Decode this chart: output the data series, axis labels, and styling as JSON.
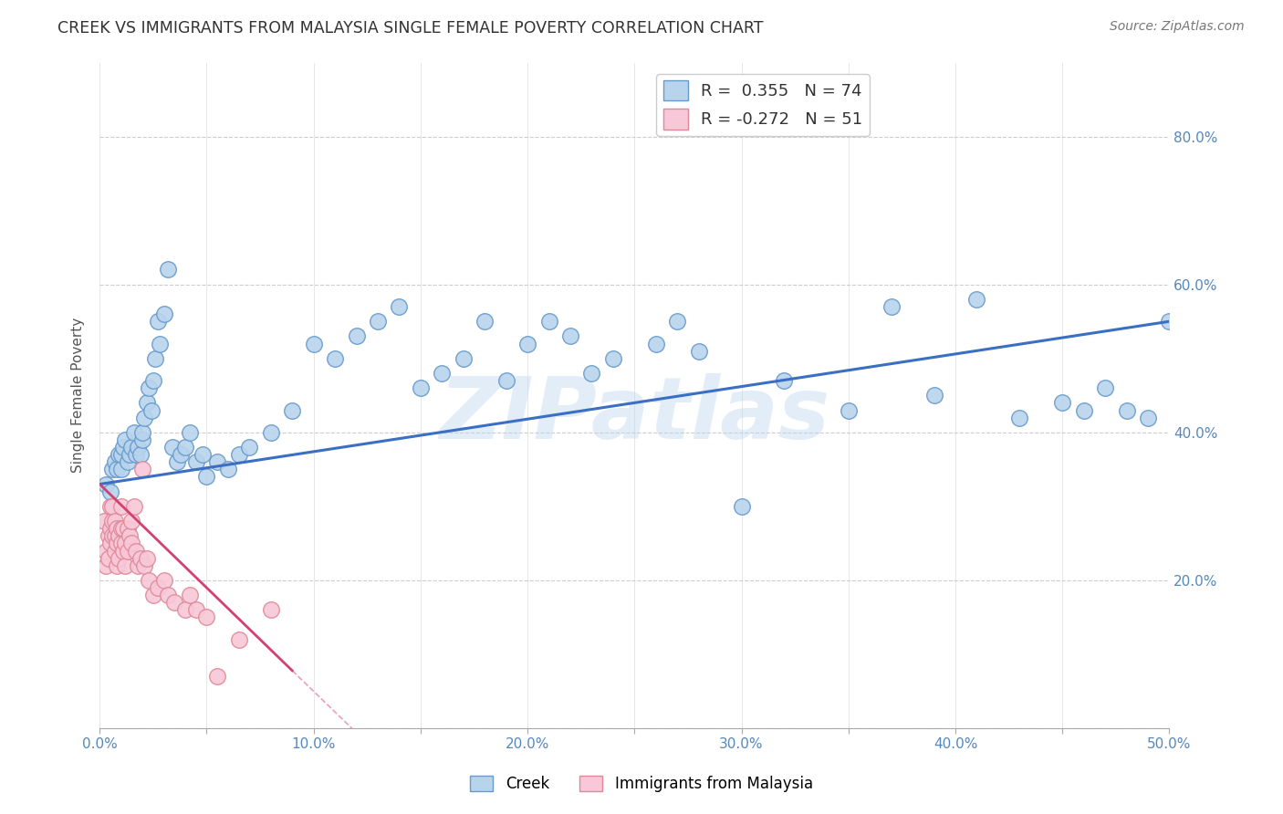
{
  "title": "CREEK VS IMMIGRANTS FROM MALAYSIA SINGLE FEMALE POVERTY CORRELATION CHART",
  "source": "Source: ZipAtlas.com",
  "ylabel": "Single Female Poverty",
  "watermark": "ZIPatlas",
  "xlim": [
    0.0,
    0.5
  ],
  "ylim": [
    0.0,
    0.9
  ],
  "x_ticks": [
    0.0,
    0.05,
    0.1,
    0.15,
    0.2,
    0.25,
    0.3,
    0.35,
    0.4,
    0.45,
    0.5
  ],
  "x_tick_labels": [
    "0.0%",
    "",
    "10.0%",
    "",
    "20.0%",
    "",
    "30.0%",
    "",
    "40.0%",
    "",
    "50.0%"
  ],
  "y_ticks": [
    0.0,
    0.2,
    0.4,
    0.6,
    0.8
  ],
  "y_tick_labels_right": [
    "",
    "20.0%",
    "40.0%",
    "60.0%",
    "80.0%"
  ],
  "legend_labels": [
    "Creek",
    "Immigrants from Malaysia"
  ],
  "creek_R": 0.355,
  "creek_N": 74,
  "malaysia_R": -0.272,
  "malaysia_N": 51,
  "creek_color": "#b8d4ed",
  "creek_edge_color": "#6699cc",
  "malaysia_color": "#f8c8d8",
  "malaysia_edge_color": "#e08898",
  "creek_line_color": "#3a6fc4",
  "malaysia_line_color": "#d44070",
  "background_color": "#ffffff",
  "grid_color": "#c8c8c8",
  "title_color": "#333333",
  "creek_line_intercept": 0.33,
  "creek_line_slope": 0.44,
  "malaysia_line_intercept": 0.33,
  "malaysia_line_slope": -2.8,
  "creek_x": [
    0.003,
    0.005,
    0.006,
    0.007,
    0.008,
    0.009,
    0.01,
    0.01,
    0.011,
    0.012,
    0.013,
    0.014,
    0.015,
    0.016,
    0.017,
    0.018,
    0.019,
    0.02,
    0.02,
    0.021,
    0.022,
    0.023,
    0.024,
    0.025,
    0.026,
    0.027,
    0.028,
    0.03,
    0.032,
    0.034,
    0.036,
    0.038,
    0.04,
    0.042,
    0.045,
    0.048,
    0.05,
    0.055,
    0.06,
    0.065,
    0.07,
    0.08,
    0.09,
    0.1,
    0.11,
    0.12,
    0.13,
    0.14,
    0.15,
    0.16,
    0.17,
    0.18,
    0.19,
    0.2,
    0.21,
    0.22,
    0.23,
    0.24,
    0.26,
    0.27,
    0.28,
    0.3,
    0.32,
    0.35,
    0.37,
    0.39,
    0.41,
    0.43,
    0.45,
    0.46,
    0.47,
    0.48,
    0.49,
    0.5
  ],
  "creek_y": [
    0.33,
    0.32,
    0.35,
    0.36,
    0.35,
    0.37,
    0.35,
    0.37,
    0.38,
    0.39,
    0.36,
    0.37,
    0.38,
    0.4,
    0.37,
    0.38,
    0.37,
    0.39,
    0.4,
    0.42,
    0.44,
    0.46,
    0.43,
    0.47,
    0.5,
    0.55,
    0.52,
    0.56,
    0.62,
    0.38,
    0.36,
    0.37,
    0.38,
    0.4,
    0.36,
    0.37,
    0.34,
    0.36,
    0.35,
    0.37,
    0.38,
    0.4,
    0.43,
    0.52,
    0.5,
    0.53,
    0.55,
    0.57,
    0.46,
    0.48,
    0.5,
    0.55,
    0.47,
    0.52,
    0.55,
    0.53,
    0.48,
    0.5,
    0.52,
    0.55,
    0.51,
    0.3,
    0.47,
    0.43,
    0.57,
    0.45,
    0.58,
    0.42,
    0.44,
    0.43,
    0.46,
    0.43,
    0.42,
    0.55
  ],
  "malaysia_x": [
    0.002,
    0.003,
    0.003,
    0.004,
    0.004,
    0.005,
    0.005,
    0.005,
    0.006,
    0.006,
    0.006,
    0.007,
    0.007,
    0.007,
    0.008,
    0.008,
    0.008,
    0.009,
    0.009,
    0.01,
    0.01,
    0.01,
    0.011,
    0.011,
    0.012,
    0.012,
    0.013,
    0.013,
    0.014,
    0.015,
    0.015,
    0.016,
    0.017,
    0.018,
    0.019,
    0.02,
    0.021,
    0.022,
    0.023,
    0.025,
    0.027,
    0.03,
    0.032,
    0.035,
    0.04,
    0.042,
    0.045,
    0.05,
    0.055,
    0.065,
    0.08
  ],
  "malaysia_y": [
    0.28,
    0.22,
    0.24,
    0.23,
    0.26,
    0.25,
    0.27,
    0.3,
    0.26,
    0.28,
    0.3,
    0.24,
    0.26,
    0.28,
    0.22,
    0.25,
    0.27,
    0.23,
    0.26,
    0.25,
    0.27,
    0.3,
    0.24,
    0.27,
    0.22,
    0.25,
    0.24,
    0.27,
    0.26,
    0.25,
    0.28,
    0.3,
    0.24,
    0.22,
    0.23,
    0.35,
    0.22,
    0.23,
    0.2,
    0.18,
    0.19,
    0.2,
    0.18,
    0.17,
    0.16,
    0.18,
    0.16,
    0.15,
    0.07,
    0.12,
    0.16
  ]
}
